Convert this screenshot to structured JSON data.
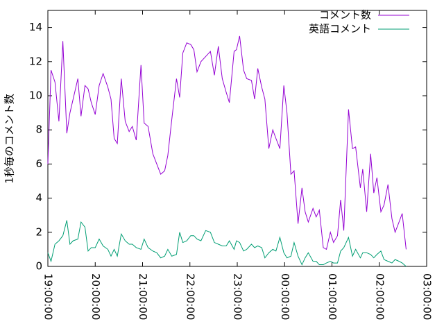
{
  "chart_data": {
    "type": "line",
    "y_label": "1秒毎のコメント数",
    "x": [
      "19:00:00",
      "19:04:00",
      "19:09:00",
      "19:14:00",
      "19:19:00",
      "19:24:00",
      "19:28:00",
      "19:32:00",
      "19:38:00",
      "19:42:00",
      "19:47:00",
      "19:51:00",
      "19:55:00",
      "20:00:00",
      "20:05:00",
      "20:10:00",
      "20:16:00",
      "20:20:00",
      "20:24:00",
      "20:28:00",
      "20:33:00",
      "20:38:00",
      "20:43:00",
      "20:47:00",
      "20:52:00",
      "20:58:00",
      "21:02:00",
      "21:07:00",
      "21:13:00",
      "21:18:00",
      "21:23:00",
      "21:28:00",
      "21:32:00",
      "21:37:00",
      "21:43:00",
      "21:47:00",
      "21:51:00",
      "21:56:00",
      "22:01:00",
      "22:05:00",
      "22:09:00",
      "22:14:00",
      "22:20:00",
      "22:26:00",
      "22:31:00",
      "22:36:00",
      "22:41:00",
      "22:46:00",
      "22:50:00",
      "22:56:00",
      "22:59:00",
      "23:03:00",
      "23:08:00",
      "23:12:00",
      "23:18:00",
      "23:22:00",
      "23:26:00",
      "23:31:00",
      "23:35:00",
      "23:40:00",
      "23:45:00",
      "23:49:00",
      "23:54:00",
      "23:59:00",
      "00:03:00",
      "00:08:00",
      "00:12:00",
      "00:17:00",
      "00:22:00",
      "00:26:00",
      "00:30:00",
      "00:36:00",
      "00:40:00",
      "00:44:00",
      "00:49:00",
      "00:53:00",
      "00:58:00",
      "01:02:00",
      "01:07:00",
      "01:11:00",
      "01:15:00",
      "01:21:00",
      "01:26:00",
      "01:30:00",
      "01:36:00",
      "01:39:00",
      "01:44:00",
      "01:49:00",
      "01:53:00",
      "01:57:00",
      "02:02:00",
      "02:06:00",
      "02:11:00",
      "02:16:00",
      "02:20:00",
      "02:25:00",
      "02:29:00",
      "02:34:00"
    ],
    "series": [
      {
        "name": "コメント数",
        "color": "#9400d3",
        "values": [
          6.0,
          11.5,
          10.8,
          8.5,
          13.2,
          7.8,
          9.0,
          9.8,
          11.0,
          8.8,
          10.6,
          10.4,
          9.6,
          8.9,
          10.6,
          11.3,
          10.5,
          9.8,
          7.5,
          7.2,
          11.0,
          8.5,
          7.9,
          8.2,
          7.4,
          11.8,
          8.4,
          8.2,
          6.6,
          6.0,
          5.4,
          5.6,
          6.5,
          8.6,
          11.0,
          9.9,
          12.5,
          13.1,
          13.0,
          12.7,
          11.4,
          12.0,
          12.3,
          12.6,
          11.2,
          12.9,
          11.0,
          10.2,
          9.6,
          12.6,
          12.7,
          13.5,
          11.5,
          11.0,
          10.9,
          9.8,
          11.6,
          10.5,
          9.8,
          6.9,
          8.0,
          7.5,
          6.9,
          10.6,
          9.0,
          5.4,
          5.6,
          2.5,
          4.6,
          3.2,
          2.6,
          3.4,
          2.9,
          3.3,
          1.1,
          1.0,
          2.0,
          1.4,
          1.8,
          3.9,
          2.1,
          9.2,
          6.9,
          7.0,
          4.6,
          5.7,
          3.2,
          6.6,
          4.3,
          5.2,
          3.2,
          3.6,
          4.8,
          2.8,
          2.0,
          2.6,
          3.1,
          1.0
        ]
      },
      {
        "name": "英語コメント",
        "color": "#009e73",
        "values": [
          0.8,
          0.3,
          1.3,
          1.5,
          1.8,
          2.7,
          1.3,
          1.5,
          1.6,
          2.6,
          2.3,
          0.9,
          1.1,
          1.1,
          1.6,
          1.2,
          1.0,
          0.6,
          1.0,
          0.6,
          1.9,
          1.5,
          1.3,
          1.3,
          1.1,
          1.0,
          1.6,
          1.1,
          0.9,
          0.8,
          0.5,
          0.6,
          1.0,
          0.6,
          0.7,
          2.0,
          1.4,
          1.5,
          1.8,
          1.8,
          1.6,
          1.5,
          2.1,
          2.0,
          1.4,
          1.3,
          1.2,
          1.2,
          1.5,
          1.0,
          1.5,
          1.4,
          0.9,
          1.0,
          1.3,
          1.1,
          1.2,
          1.1,
          0.5,
          0.8,
          1.0,
          0.9,
          1.7,
          0.8,
          0.5,
          0.6,
          1.4,
          0.6,
          0.1,
          0.5,
          0.8,
          0.3,
          0.3,
          0.1,
          0.1,
          0.2,
          0.3,
          0.2,
          0.2,
          0.9,
          1.1,
          1.7,
          0.6,
          1.0,
          0.5,
          0.8,
          0.8,
          0.7,
          0.5,
          0.7,
          0.9,
          0.4,
          0.3,
          0.2,
          0.4,
          0.3,
          0.2,
          0.0
        ]
      }
    ],
    "xlim": [
      "19:00:00",
      "03:00:00"
    ],
    "xticks": [
      "19:00:00",
      "20:00:00",
      "21:00:00",
      "22:00:00",
      "23:00:00",
      "00:00:00",
      "01:00:00",
      "02:00:00",
      "03:00:00"
    ],
    "ylim": [
      0,
      15
    ],
    "yticks": [
      0,
      2,
      4,
      6,
      8,
      10,
      12,
      14
    ],
    "legend": "top-right",
    "grid": false
  }
}
